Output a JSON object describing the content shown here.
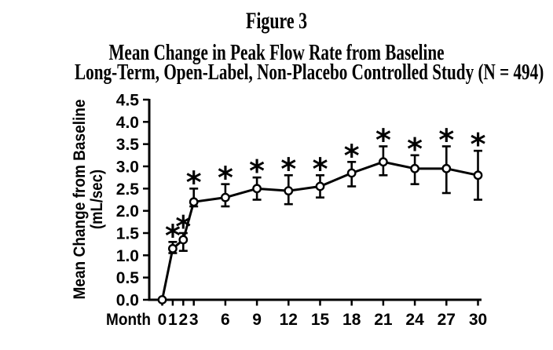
{
  "figure": {
    "label": "Figure 3",
    "title_line1": "Mean Change in Peak Flow Rate from Baseline",
    "title_line2": "Long-Term, Open-Label, Non-Placebo Controlled Study (N = 494)"
  },
  "colors": {
    "ink": "#000000",
    "background": "#ffffff"
  },
  "chart_data": {
    "type": "line",
    "title": "Mean Change in Peak Flow Rate from Baseline — Long-Term, Open-Label, Non-Placebo Controlled Study (N = 494)",
    "xlabel": "Month",
    "ylabel": "Mean Change from Baseline (mL/sec)",
    "ylabel_lines": [
      "Mean Change from Baseline",
      "(mL/sec)"
    ],
    "ylim": [
      0.0,
      4.5
    ],
    "yticks": [
      0.0,
      0.5,
      1.0,
      1.5,
      2.0,
      2.5,
      3.0,
      3.5,
      4.0,
      4.5
    ],
    "x": [
      0,
      1,
      2,
      3,
      6,
      9,
      12,
      15,
      18,
      21,
      24,
      27,
      30
    ],
    "grid": false,
    "legend": "none",
    "marker": "open-circle",
    "significance_symbol": "*",
    "series": [
      {
        "name": "Mean change in peak flow rate (mL/sec)",
        "points": [
          {
            "month": 0,
            "value": 0.0,
            "err_low": null,
            "err_high": null,
            "starred": false
          },
          {
            "month": 1,
            "value": 1.15,
            "err_low": 1.05,
            "err_high": 1.3,
            "starred": true
          },
          {
            "month": 2,
            "value": 1.35,
            "err_low": 1.1,
            "err_high": 1.5,
            "starred": true
          },
          {
            "month": 3,
            "value": 2.2,
            "err_low": 2.1,
            "err_high": 2.5,
            "starred": true
          },
          {
            "month": 6,
            "value": 2.3,
            "err_low": 2.1,
            "err_high": 2.6,
            "starred": true
          },
          {
            "month": 9,
            "value": 2.5,
            "err_low": 2.25,
            "err_high": 2.75,
            "starred": true
          },
          {
            "month": 12,
            "value": 2.45,
            "err_low": 2.15,
            "err_high": 2.8,
            "starred": true
          },
          {
            "month": 15,
            "value": 2.55,
            "err_low": 2.3,
            "err_high": 2.8,
            "starred": true
          },
          {
            "month": 18,
            "value": 2.85,
            "err_low": 2.55,
            "err_high": 3.1,
            "starred": true
          },
          {
            "month": 21,
            "value": 3.1,
            "err_low": 2.8,
            "err_high": 3.45,
            "starred": true
          },
          {
            "month": 24,
            "value": 2.95,
            "err_low": 2.6,
            "err_high": 3.25,
            "starred": true
          },
          {
            "month": 27,
            "value": 2.95,
            "err_low": 2.4,
            "err_high": 3.45,
            "starred": true
          },
          {
            "month": 30,
            "value": 2.8,
            "err_low": 2.25,
            "err_high": 3.35,
            "starred": true
          }
        ]
      }
    ]
  }
}
